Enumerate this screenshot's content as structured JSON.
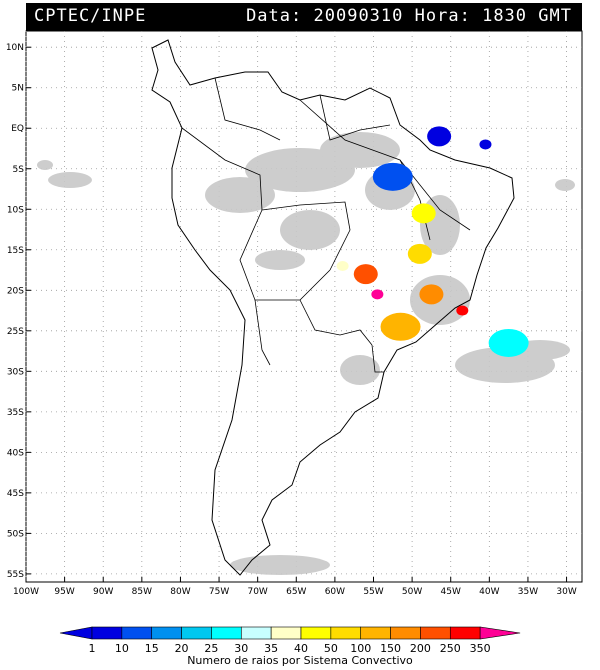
{
  "header": {
    "source": "CPTEC/INPE",
    "date_label": "Data:",
    "date_value": "20090310",
    "time_label": "Hora:",
    "time_value": "1830",
    "tz": "GMT"
  },
  "map": {
    "lat_ticks": [
      "10N",
      "5N",
      "EQ",
      "5S",
      "10S",
      "15S",
      "20S",
      "25S",
      "30S",
      "35S",
      "40S",
      "45S",
      "50S",
      "55S"
    ],
    "lon_ticks": [
      "100W",
      "95W",
      "90W",
      "85W",
      "80W",
      "75W",
      "70W",
      "65W",
      "60W",
      "55W",
      "50W",
      "45W",
      "40W",
      "35W",
      "30W"
    ],
    "lon_range": [
      -100,
      -28
    ],
    "lat_range": [
      -56,
      12
    ]
  },
  "legend": {
    "title": "Numero de raios por Sistema Convectivo",
    "labels": [
      "1",
      "10",
      "15",
      "20",
      "25",
      "30",
      "35",
      "40",
      "50",
      "100",
      "150",
      "200",
      "250",
      "350"
    ],
    "colors": [
      "#0000e0",
      "#0050f0",
      "#0090f0",
      "#00c8f0",
      "#00ffff",
      "#c8ffff",
      "#ffffc8",
      "#ffff00",
      "#ffdc00",
      "#ffb400",
      "#ff8c00",
      "#ff5000",
      "#ff0000",
      "#ff0096"
    ]
  },
  "systems": [
    {
      "lon": -52.5,
      "lat": -6,
      "color": "#0050f0",
      "size": "large"
    },
    {
      "lon": -46.5,
      "lat": -1,
      "color": "#0000e0",
      "size": "medium"
    },
    {
      "lon": -40.5,
      "lat": -2,
      "color": "#0000e0",
      "size": "small"
    },
    {
      "lon": -48.5,
      "lat": -10.5,
      "color": "#ffff00",
      "size": "medium"
    },
    {
      "lon": -49,
      "lat": -15.5,
      "color": "#ffdc00",
      "size": "medium"
    },
    {
      "lon": -56,
      "lat": -18,
      "color": "#ff5000",
      "size": "medium"
    },
    {
      "lon": -59,
      "lat": -17,
      "color": "#ffffc8",
      "size": "small"
    },
    {
      "lon": -54.5,
      "lat": -20.5,
      "color": "#ff0096",
      "size": "small"
    },
    {
      "lon": -47.5,
      "lat": -20.5,
      "color": "#ff8c00",
      "size": "medium"
    },
    {
      "lon": -43.5,
      "lat": -22.5,
      "color": "#ff0000",
      "size": "small"
    },
    {
      "lon": -51.5,
      "lat": -24.5,
      "color": "#ffb400",
      "size": "large"
    },
    {
      "lon": -37.5,
      "lat": -26.5,
      "color": "#00ffff",
      "size": "large"
    }
  ]
}
